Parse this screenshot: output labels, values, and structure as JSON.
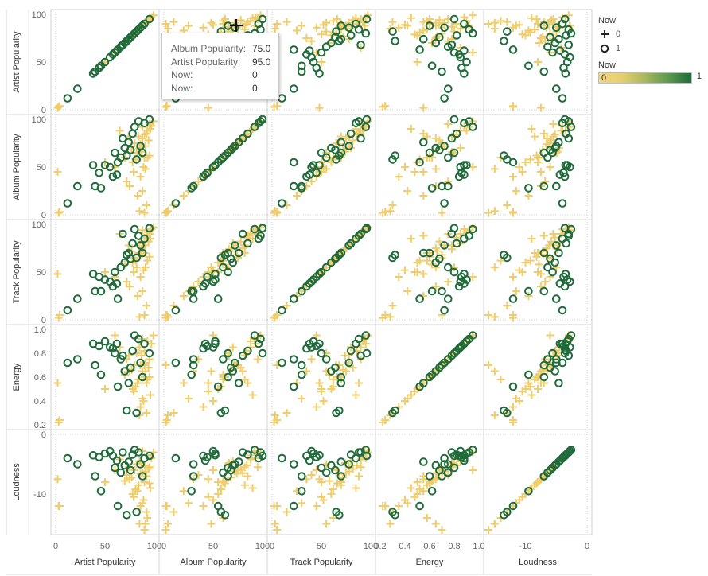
{
  "chart_data": {
    "type": "scatter",
    "title": "",
    "variables": [
      {
        "name": "Artist Popularity",
        "range": [
          0,
          100
        ],
        "ticks": [
          0,
          50,
          100
        ],
        "tick_labels": [
          "0",
          "50",
          "100"
        ]
      },
      {
        "name": "Album Popularity",
        "range": [
          0,
          100
        ],
        "ticks": [
          0,
          50,
          100
        ],
        "tick_labels": [
          "0",
          "50",
          "100"
        ]
      },
      {
        "name": "Track Popularity",
        "range": [
          0,
          100
        ],
        "ticks": [
          0,
          50,
          100
        ],
        "tick_labels": [
          "0",
          "50",
          "100"
        ]
      },
      {
        "name": "Energy",
        "range": [
          0.2,
          1.0
        ],
        "ticks": [
          0.2,
          0.4,
          0.6,
          0.8,
          1.0
        ],
        "tick_labels": [
          "0.2",
          "0.4",
          "0.6",
          "0.8",
          "1.0"
        ]
      },
      {
        "name": "Loudness",
        "range": [
          -16,
          0
        ],
        "ticks": [
          -10,
          0
        ],
        "tick_labels": [
          "-10",
          "0"
        ]
      }
    ],
    "series": [
      {
        "now": 0,
        "shape": "cross",
        "points": [
          [
            95,
            95,
            90,
            0.75,
            -5.5
          ],
          [
            88,
            80,
            75,
            0.65,
            -6.5
          ],
          [
            92,
            85,
            88,
            0.55,
            -7.0
          ],
          [
            85,
            70,
            80,
            0.85,
            -4.5
          ],
          [
            90,
            60,
            70,
            0.6,
            -8.0
          ],
          [
            80,
            75,
            65,
            0.7,
            -6.0
          ],
          [
            96,
            90,
            85,
            0.45,
            -9.0
          ],
          [
            82,
            65,
            55,
            0.8,
            -5.0
          ],
          [
            78,
            55,
            60,
            0.5,
            -10.0
          ],
          [
            93,
            88,
            92,
            0.9,
            -3.5
          ],
          [
            86,
            40,
            45,
            0.35,
            -12.0
          ],
          [
            75,
            30,
            35,
            0.65,
            -7.5
          ],
          [
            91,
            72,
            78,
            0.72,
            -6.2
          ],
          [
            84,
            82,
            70,
            0.58,
            -8.5
          ],
          [
            89,
            50,
            52,
            0.4,
            -11.0
          ],
          [
            97,
            93,
            95,
            0.88,
            -4.0
          ],
          [
            70,
            60,
            58,
            0.62,
            -7.8
          ],
          [
            83,
            20,
            25,
            0.55,
            -9.5
          ],
          [
            94,
            78,
            82,
            0.68,
            -5.8
          ],
          [
            87,
            66,
            74,
            0.78,
            -4.8
          ],
          [
            79,
            45,
            50,
            0.48,
            -10.5
          ],
          [
            92,
            10,
            15,
            0.3,
            -13.0
          ],
          [
            99,
            98,
            97,
            0.95,
            -3.0
          ],
          [
            72,
            35,
            40,
            0.75,
            -6.8
          ],
          [
            81,
            58,
            62,
            0.52,
            -9.2
          ],
          [
            90,
            84,
            86,
            0.82,
            -5.2
          ],
          [
            86,
            74,
            68,
            0.7,
            -6.6
          ],
          [
            88,
            25,
            30,
            0.42,
            -11.5
          ],
          [
            77,
            68,
            72,
            0.66,
            -7.2
          ],
          [
            95,
            62,
            66,
            0.6,
            -8.2
          ],
          [
            3,
            2,
            2,
            0.22,
            -12.0
          ],
          [
            4,
            3,
            5,
            0.24,
            -12.0
          ],
          [
            2,
            45,
            48,
            0.55,
            -7.5
          ],
          [
            85,
            4,
            3,
            0.28,
            -15.0
          ],
          [
            90,
            2,
            5,
            0.7,
            -16.0
          ],
          [
            60,
            50,
            45,
            0.95,
            -6.0
          ],
          [
            50,
            55,
            50,
            0.5,
            -8.0
          ],
          [
            65,
            88,
            90,
            0.85,
            -4.2
          ],
          [
            88,
            92,
            94,
            0.92,
            -2.8
          ],
          [
            93,
            60,
            62,
            0.58,
            -14.0
          ],
          [
            91,
            48,
            55,
            0.65,
            -15.0
          ],
          [
            74,
            82,
            78,
            0.78,
            -5.5
          ]
        ]
      },
      {
        "now": 1,
        "shape": "circle",
        "points": [
          [
            12,
            12,
            10,
            0.72,
            -4.0
          ],
          [
            22,
            30,
            22,
            0.75,
            -5.0
          ],
          [
            38,
            52,
            48,
            0.88,
            -3.5
          ],
          [
            40,
            30,
            30,
            0.7,
            -7.0
          ],
          [
            44,
            44,
            45,
            0.86,
            -3.8
          ],
          [
            46,
            28,
            30,
            0.62,
            -9.5
          ],
          [
            50,
            52,
            42,
            0.9,
            -3.2
          ],
          [
            55,
            50,
            40,
            0.85,
            -2.8
          ],
          [
            58,
            40,
            35,
            0.84,
            -3.6
          ],
          [
            62,
            42,
            38,
            0.88,
            -4.4
          ],
          [
            60,
            65,
            50,
            0.8,
            -5.6
          ],
          [
            63,
            55,
            22,
            0.52,
            -12.0
          ],
          [
            66,
            60,
            55,
            0.75,
            -6.4
          ],
          [
            68,
            80,
            90,
            0.78,
            -3.0
          ],
          [
            70,
            70,
            60,
            0.65,
            -5.2
          ],
          [
            72,
            62,
            68,
            0.32,
            -13.5
          ],
          [
            74,
            76,
            70,
            0.55,
            -4.6
          ],
          [
            76,
            68,
            64,
            0.68,
            -6.0
          ],
          [
            78,
            85,
            80,
            0.82,
            -3.4
          ],
          [
            80,
            92,
            95,
            0.95,
            -2.6
          ],
          [
            82,
            58,
            65,
            0.3,
            -13.0
          ],
          [
            84,
            98,
            88,
            0.92,
            -3.0
          ],
          [
            86,
            72,
            78,
            0.72,
            -5.0
          ],
          [
            88,
            65,
            70,
            0.6,
            -7.0
          ],
          [
            90,
            96,
            85,
            0.88,
            -4.0
          ],
          [
            95,
            100,
            96,
            0.8,
            -3.6
          ]
        ]
      }
    ],
    "legend": {
      "shape_title": "Now",
      "shape_items": [
        {
          "label": "0",
          "shape": "cross"
        },
        {
          "label": "1",
          "shape": "circle"
        }
      ],
      "color_title": "Now",
      "color_min": "0",
      "color_max": "1",
      "placement": "right"
    },
    "colors": {
      "now_0": "#f0cd6c",
      "now_1": "#1f6b3b",
      "grid": "#d9d9d9"
    },
    "grid": false
  },
  "tooltip": {
    "rows": [
      {
        "label": "Album Popularity:",
        "value": "75.0"
      },
      {
        "label": "Artist Popularity:",
        "value": "95.0"
      },
      {
        "label": "Now:",
        "value": "0"
      },
      {
        "label": "Now:",
        "value": "0"
      }
    ]
  }
}
